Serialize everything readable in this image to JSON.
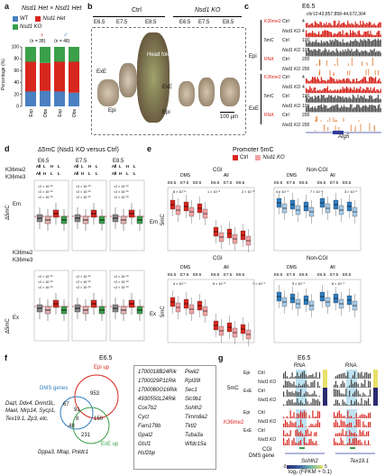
{
  "panel_letters": {
    "a": "a",
    "b": "b",
    "c": "c",
    "d": "d",
    "e": "e",
    "f": "f",
    "g": "g"
  },
  "panel_a": {
    "title": "Nsd1 Het × Nsd1 Het",
    "legend": [
      "WT",
      "Nsd1 Het",
      "Nsd1 KO"
    ],
    "ylabel": "Percentage (%)",
    "counts": [
      "(n = 38)",
      "(n = 48)"
    ],
    "categories": [
      "Exp",
      "Obs",
      "Exp",
      "Obs"
    ],
    "colors": {
      "WT": "#4a7fc1",
      "Het": "#d7261e",
      "KO": "#3aa04a"
    },
    "chart_data": {
      "type": "bar",
      "categories": [
        "♀ Exp",
        "♀ Obs",
        "♂ Exp",
        "♂ Obs"
      ],
      "series": [
        {
          "name": "WT",
          "values": [
            25,
            26,
            25,
            23
          ]
        },
        {
          "name": "Nsd1 Het",
          "values": [
            50,
            47,
            50,
            52
          ]
        },
        {
          "name": "Nsd1 KO",
          "values": [
            25,
            27,
            25,
            25
          ]
        }
      ],
      "ylim": [
        0,
        100
      ]
    },
    "yticks": [
      "0",
      "20",
      "40",
      "60",
      "80",
      "100"
    ]
  },
  "panel_b": {
    "ctrl_label": "Ctrl",
    "ko_label": "Nsd1 KO",
    "stages_ctrl": [
      "E6.5",
      "E7.5",
      "E8.5"
    ],
    "stages_ko": [
      "E6.5",
      "E7.5",
      "E8.5"
    ],
    "annotations": [
      "ExE",
      "Epi",
      "Head fold",
      "ExE",
      "Epi"
    ],
    "scale": "100 µm"
  },
  "panel_c": {
    "title": "E6.5",
    "coords": "chr10:43,857,858-44,672,304",
    "groups": [
      {
        "name": "Epi",
        "tracks": [
          {
            "mark": "K36me2",
            "sample": "Ctrl",
            "scale": "4"
          },
          {
            "mark": "",
            "sample": "Nsd1 KO",
            "scale": "4"
          },
          {
            "mark": "5mC",
            "sample": "Ctrl",
            "scale": "100"
          },
          {
            "mark": "",
            "sample": "Nsd1 KO",
            "scale": "100"
          },
          {
            "mark": "RNA",
            "sample": "Ctrl",
            "scale": "200"
          },
          {
            "mark": "",
            "sample": "Nsd1 KO",
            "scale": "200"
          }
        ]
      },
      {
        "name": "ExE",
        "tracks": [
          {
            "mark": "K36me2",
            "sample": "Ctrl",
            "scale": "4"
          },
          {
            "mark": "",
            "sample": "Nsd1 KO",
            "scale": "4"
          },
          {
            "mark": "5mC",
            "sample": "Ctrl",
            "scale": "100"
          },
          {
            "mark": "",
            "sample": "Nsd1 KO",
            "scale": "100"
          },
          {
            "mark": "RNA",
            "sample": "Ctrl",
            "scale": "200"
          },
          {
            "mark": "",
            "sample": "Nsd1 KO",
            "scale": "200"
          }
        ]
      }
    ],
    "gene": "Atg5",
    "scales": {
      "k36": "16",
      "mc": "100",
      "rna": "150"
    }
  },
  "panel_d": {
    "title": "Δ5mC (Nsd1 KO versus Ctrl)",
    "stages": [
      "E6.5",
      "E7.5",
      "E8.5"
    ],
    "row_k36me2": "K36me2",
    "row_k36me3": "K36me3",
    "k36me2_vals": [
      "All",
      "L",
      "H",
      "L"
    ],
    "k36me3_vals": [
      "All",
      "H",
      "L",
      "L"
    ],
    "em": "Em",
    "ex": "Ex",
    "ylabel": "Δ5mC",
    "pvals": [
      "<2 × 10⁻¹⁶",
      "<2 × 10⁻¹⁶",
      "<2 × 10⁻¹⁶"
    ]
  },
  "panel_e": {
    "title": "Promoter 5mC",
    "legend": [
      "Ctrl",
      "Nsd1 KO"
    ],
    "cgi": "CGI",
    "noncgi": "Non-CGI",
    "dms": "DMS",
    "all": "All",
    "stages": [
      "E6.5",
      "E7.5",
      "E8.5"
    ],
    "em": "Em",
    "ex": "Ex",
    "ylabel": "5mC",
    "colors": {
      "ctrl_cgi": "#d7261e",
      "ko_cgi": "#f2a3a6",
      "ctrl_non": "#2f7dc1",
      "ko_non": "#a6cbe8"
    },
    "pvals_em": [
      "8 × 10⁻⁵",
      "1 × 10⁻⁵",
      "2 × 10⁻⁸",
      "4 × 10⁻¹",
      "7 × 10⁻¹",
      "3 × 10⁻¹"
    ],
    "pvals_ex": [
      "4 × 10⁻¹",
      "5 × 10⁻⁶",
      "7 × 10⁻¹",
      "9 × 10⁻¹",
      "8 × 10⁻¹"
    ]
  },
  "panel_f": {
    "title": "E6.5",
    "epi_up": "Epi up",
    "dms_genes": "DMS genes",
    "exe_up": "ExE up",
    "counts": [
      "953",
      "67",
      "91",
      "8",
      "150",
      "231",
      "48"
    ],
    "left_genes": "Dazl, Ddx4, Dnmt3L, Mael, Nlrp14, Sycp1, Tex19.1, Zp3, etc.",
    "bottom_genes": "Dppa3, Mtap, Pnldc1",
    "list_col1": [
      "1700018B24Rik",
      "1700029P11Rik",
      "1700080O16Rik",
      "4930550L24Rik",
      "Cox7b2",
      "Cyct",
      "Fam178b",
      "Gpat2",
      "Gtsf1",
      "Hsf2bp"
    ],
    "list_col2": [
      "Piwil2",
      "Rpl39l",
      "Sec1",
      "Slc9b1",
      "Sohlh2",
      "Timm8a2",
      "Tktl2",
      "Tuba3a",
      "Wfdc15a"
    ]
  },
  "panel_g": {
    "title": "E6.5",
    "rna": "RNA",
    "mc": "5mC",
    "k36": "K36me2",
    "rows": [
      [
        "Epi",
        "Ctrl"
      ],
      [
        "",
        "Nsd1 KO"
      ],
      [
        "ExE",
        "Ctrl"
      ],
      [
        "",
        "Nsd1 KO"
      ],
      [
        "Epi",
        "Ctrl"
      ],
      [
        "",
        "Nsd1 KO"
      ],
      [
        "ExE",
        "Ctrl"
      ],
      [
        "",
        "Nsd1 KO"
      ]
    ],
    "cgi": "CGI",
    "dms_gene": "DMS gene",
    "genes": [
      "Sohlh2",
      "Tex19.1"
    ],
    "scale_label": "log₂ (FPKM + 0.1)",
    "scale_ticks": [
      "-3",
      "5"
    ]
  }
}
